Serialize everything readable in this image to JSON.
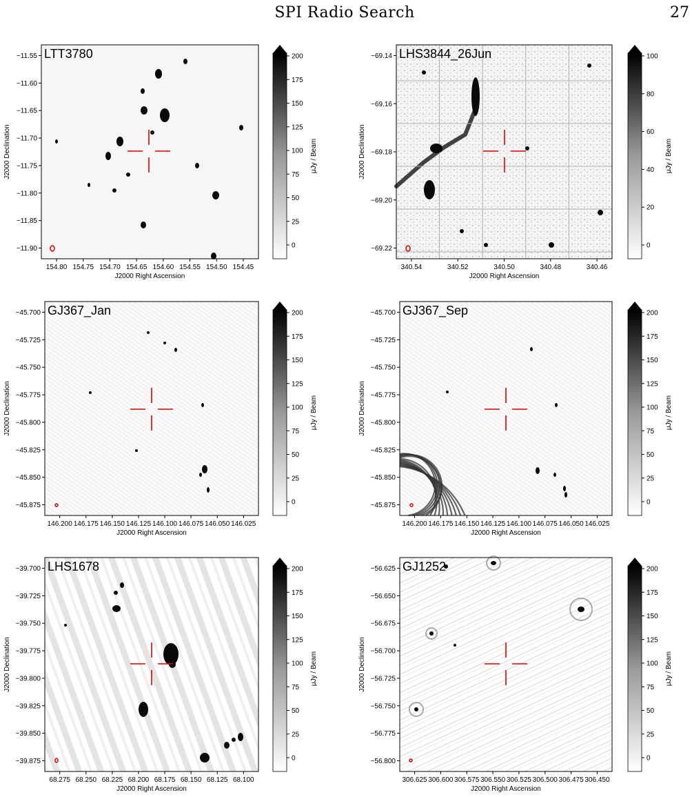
{
  "header": {
    "running_title": "SPI Radio Search",
    "page_number": "27"
  },
  "colors": {
    "crosshair": "#e00000",
    "beam": "#e00000",
    "grid": "#b0b0b0"
  },
  "panels": [
    {
      "name": "LTT3780",
      "xlabel": "J2000 Right Ascension",
      "ylabel": "J2000 Declination",
      "x_ticks": [
        "154.80",
        "154.75",
        "154.70",
        "154.65",
        "154.60",
        "154.55",
        "154.50",
        "154.45"
      ],
      "y_ticks": [
        "−11.55",
        "−11.60",
        "−11.65",
        "−11.70",
        "−11.75",
        "−11.80",
        "−11.85",
        "−11.90"
      ],
      "colorbar": {
        "label": "μJy / Beam",
        "ticks": [
          "200",
          "175",
          "150",
          "125",
          "100",
          "75",
          "50",
          "25",
          "0"
        ]
      }
    },
    {
      "name": "LHS3844_26Jun",
      "xlabel": "J2000 Right Ascension",
      "ylabel": "J2000 Declination",
      "x_ticks": [
        "340.54",
        "340.52",
        "340.50",
        "340.48",
        "340.46"
      ],
      "y_ticks": [
        "−69.14",
        "−69.16",
        "−69.18",
        "−69.20",
        "−69.22"
      ],
      "colorbar": {
        "label": "μJy / Beam",
        "ticks": [
          "100",
          "80",
          "60",
          "40",
          "20",
          "0"
        ]
      }
    },
    {
      "name": "GJ367_Jan",
      "xlabel": "J2000 Right Ascension",
      "ylabel": "J2000 Declination",
      "x_ticks": [
        "146.200",
        "146.175",
        "146.150",
        "146.125",
        "146.100",
        "146.075",
        "146.050",
        "146.025"
      ],
      "y_ticks": [
        "−45.700",
        "−45.725",
        "−45.750",
        "−45.775",
        "−45.800",
        "−45.825",
        "−45.850",
        "−45.875"
      ],
      "colorbar": {
        "label": "μJy / Beam",
        "ticks": [
          "200",
          "175",
          "150",
          "125",
          "100",
          "75",
          "50",
          "25",
          "0"
        ]
      }
    },
    {
      "name": "GJ367_Sep",
      "xlabel": "J2000 Right Ascension",
      "ylabel": "J2000 Declination",
      "x_ticks": [
        "146.200",
        "146.175",
        "146.150",
        "146.125",
        "146.100",
        "146.075",
        "146.050",
        "146.025"
      ],
      "y_ticks": [
        "−45.700",
        "−45.725",
        "−45.750",
        "−45.775",
        "−45.800",
        "−45.825",
        "−45.850",
        "−45.875"
      ],
      "colorbar": {
        "label": "μJy / Beam",
        "ticks": [
          "200",
          "175",
          "150",
          "125",
          "100",
          "75",
          "50",
          "25",
          "0"
        ]
      }
    },
    {
      "name": "LHS1678",
      "xlabel": "J2000 Right Ascension",
      "ylabel": "J2000 Declination",
      "x_ticks": [
        "68.275",
        "68.250",
        "68.225",
        "68.200",
        "68.175",
        "68.150",
        "68.125",
        "68.100"
      ],
      "y_ticks": [
        "−39.700",
        "−39.725",
        "−39.750",
        "−39.775",
        "−39.800",
        "−39.825",
        "−39.850",
        "−39.875"
      ],
      "colorbar": {
        "label": "μJy / Beam",
        "ticks": [
          "200",
          "175",
          "150",
          "125",
          "100",
          "75",
          "50",
          "25",
          "0"
        ]
      }
    },
    {
      "name": "GJ1252",
      "xlabel": "J2000 Right Ascension",
      "ylabel": "J2000 Declination",
      "x_ticks": [
        "306.625",
        "306.600",
        "306.575",
        "306.550",
        "306.525",
        "306.500",
        "306.475",
        "306.450"
      ],
      "y_ticks": [
        "−56.625",
        "−56.650",
        "−56.675",
        "−56.700",
        "−56.725",
        "−56.750",
        "−56.775",
        "−56.800"
      ],
      "colorbar": {
        "label": "μJy / Beam",
        "ticks": [
          "200",
          "175",
          "150",
          "125",
          "100",
          "75",
          "50",
          "25",
          "0"
        ]
      }
    }
  ]
}
